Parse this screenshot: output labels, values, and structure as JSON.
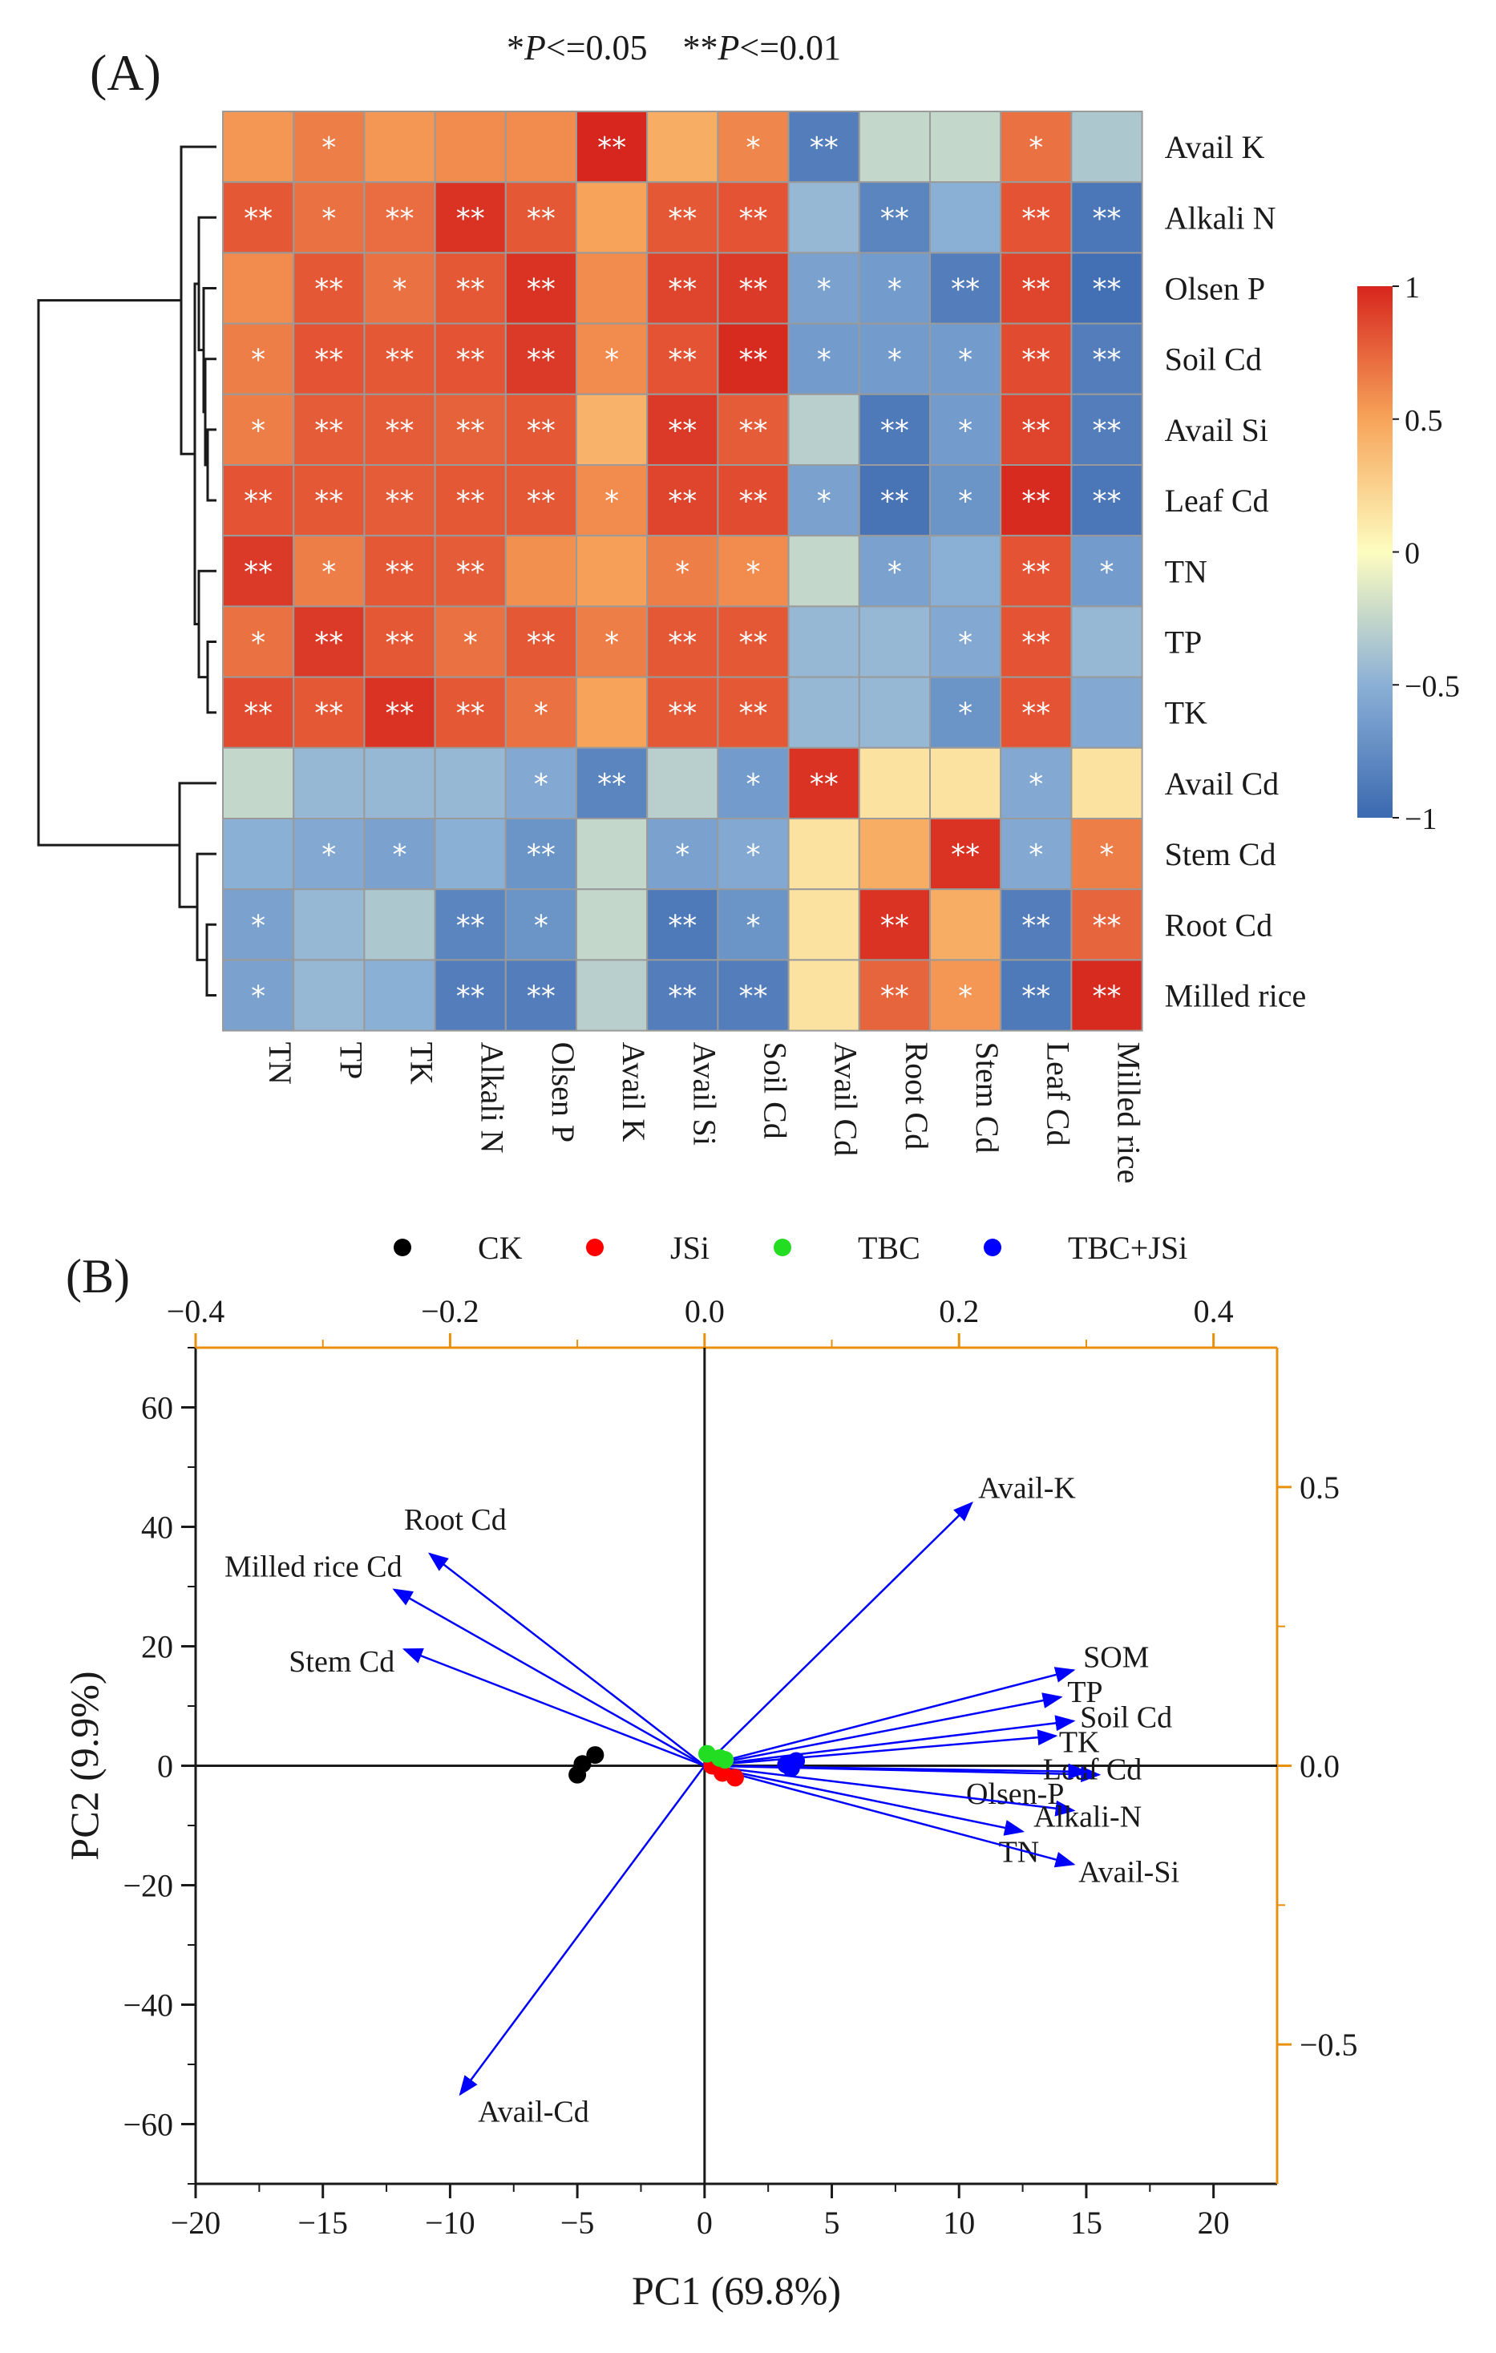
{
  "figure": {
    "panel_a_label": "(A)",
    "panel_b_label": "(B)",
    "sig_legend": {
      "p05_stars": "*",
      "p05_var": "P",
      "p05_rest": "<=0.05",
      "p01_stars": "**",
      "p01_var": "P",
      "p01_rest": "<=0.01"
    }
  },
  "chart_data": [
    {
      "type": "heatmap",
      "title": "",
      "rows": [
        "Avail K",
        "Alkali N",
        "Olsen P",
        "Soil Cd",
        "Avail Si",
        "Leaf Cd",
        "TN",
        "TP",
        "TK",
        "Avail Cd",
        "Stem Cd",
        "Root Cd",
        "Milled rice"
      ],
      "columns": [
        "TN",
        "TP",
        "TK",
        "Alkali N",
        "Olsen P",
        "Avail K",
        "Avail Si",
        "Soil Cd",
        "Avail Cd",
        "Root Cd",
        "Stem Cd",
        "Leaf Cd",
        "Milled rice"
      ],
      "values": [
        [
          0.55,
          0.65,
          0.55,
          0.6,
          0.6,
          1.0,
          0.45,
          0.62,
          -0.85,
          -0.25,
          -0.25,
          0.7,
          -0.35
        ],
        [
          0.8,
          0.7,
          0.72,
          0.95,
          0.8,
          0.5,
          0.8,
          0.82,
          -0.45,
          -0.8,
          -0.5,
          0.82,
          -0.9
        ],
        [
          0.6,
          0.8,
          0.7,
          0.8,
          0.95,
          0.6,
          0.88,
          0.92,
          -0.6,
          -0.65,
          -0.85,
          0.88,
          -0.95
        ],
        [
          0.65,
          0.82,
          0.8,
          0.82,
          0.92,
          0.6,
          0.82,
          0.98,
          -0.65,
          -0.65,
          -0.65,
          0.85,
          -0.85
        ],
        [
          0.65,
          0.78,
          0.78,
          0.76,
          0.8,
          0.42,
          0.92,
          0.78,
          -0.3,
          -0.88,
          -0.65,
          0.88,
          -0.85
        ],
        [
          0.82,
          0.8,
          0.78,
          0.8,
          0.8,
          0.6,
          0.88,
          0.85,
          -0.6,
          -0.92,
          -0.7,
          0.98,
          -0.9
        ],
        [
          0.92,
          0.65,
          0.8,
          0.78,
          0.58,
          0.52,
          0.65,
          0.6,
          -0.25,
          -0.6,
          -0.5,
          0.82,
          -0.65
        ],
        [
          0.7,
          0.92,
          0.8,
          0.7,
          0.8,
          0.65,
          0.8,
          0.8,
          -0.45,
          -0.45,
          -0.55,
          0.82,
          -0.45
        ],
        [
          0.85,
          0.8,
          0.95,
          0.8,
          0.7,
          0.5,
          0.8,
          0.8,
          -0.45,
          -0.45,
          -0.7,
          0.82,
          -0.55
        ],
        [
          -0.25,
          -0.45,
          -0.45,
          -0.45,
          -0.55,
          -0.8,
          -0.3,
          -0.65,
          0.95,
          0.15,
          0.15,
          -0.55,
          0.15
        ],
        [
          -0.5,
          -0.55,
          -0.6,
          -0.5,
          -0.7,
          -0.25,
          -0.6,
          -0.55,
          0.15,
          0.45,
          0.95,
          -0.55,
          0.65
        ],
        [
          -0.6,
          -0.45,
          -0.35,
          -0.8,
          -0.7,
          -0.25,
          -0.88,
          -0.7,
          0.15,
          0.95,
          0.45,
          -0.85,
          0.75
        ],
        [
          -0.6,
          -0.45,
          -0.5,
          -0.85,
          -0.85,
          -0.3,
          -0.85,
          -0.85,
          0.15,
          0.75,
          0.55,
          -0.88,
          0.98
        ]
      ],
      "significance": [
        [
          "",
          "*",
          "",
          "",
          "",
          "**",
          "",
          "*",
          "**",
          "",
          "",
          "*",
          ""
        ],
        [
          "**",
          "*",
          "**",
          "**",
          "**",
          "",
          "**",
          "**",
          "",
          "**",
          "",
          "**",
          "**"
        ],
        [
          "",
          "**",
          "*",
          "**",
          "**",
          "",
          "**",
          "**",
          "*",
          "*",
          "**",
          "**",
          "**"
        ],
        [
          "*",
          "**",
          "**",
          "**",
          "**",
          "*",
          "**",
          "**",
          "*",
          "*",
          "*",
          "**",
          "**"
        ],
        [
          "*",
          "**",
          "**",
          "**",
          "**",
          "",
          "**",
          "**",
          "",
          "**",
          "*",
          "**",
          "**"
        ],
        [
          "**",
          "**",
          "**",
          "**",
          "**",
          "*",
          "**",
          "**",
          "*",
          "**",
          "*",
          "**",
          "**"
        ],
        [
          "**",
          "*",
          "**",
          "**",
          "",
          "",
          "*",
          "*",
          "",
          "*",
          "",
          "**",
          "*"
        ],
        [
          "*",
          "**",
          "**",
          "*",
          "**",
          "*",
          "**",
          "**",
          "",
          "",
          "*",
          "**",
          ""
        ],
        [
          "**",
          "**",
          "**",
          "**",
          "*",
          "",
          "**",
          "**",
          "",
          "",
          "*",
          "**",
          ""
        ],
        [
          "",
          "",
          "",
          "",
          "*",
          "**",
          "",
          "*",
          "**",
          "",
          "",
          "*",
          ""
        ],
        [
          "",
          "*",
          "*",
          "",
          "**",
          "",
          "*",
          "*",
          "",
          "",
          "**",
          "*",
          "*"
        ],
        [
          "*",
          "",
          "",
          "**",
          "*",
          "",
          "**",
          "*",
          "",
          "**",
          "",
          "**",
          "**"
        ],
        [
          "*",
          "",
          "",
          "**",
          "**",
          "",
          "**",
          "**",
          "",
          "**",
          "*",
          "**",
          "**"
        ]
      ],
      "colorbar": {
        "min": -1,
        "max": 1,
        "ticks": [
          1,
          0.5,
          0,
          -0.5,
          -1
        ],
        "tick_labels": [
          "1",
          "0.5",
          "0",
          "−0.5",
          "−1"
        ]
      },
      "colors": {
        "high": "#d7261e",
        "mid": "#fdfdc0",
        "low": "#3b69b0"
      },
      "dendrogram_groups": [
        [
          "Avail K",
          "Alkali N",
          "Olsen P",
          "Soil Cd",
          "Avail Si",
          "Leaf Cd",
          "TN",
          "TP",
          "TK"
        ],
        [
          "Avail Cd",
          "Stem Cd",
          "Root Cd",
          "Milled rice"
        ]
      ]
    },
    {
      "type": "scatter",
      "subtype": "biplot",
      "xlabel": "PC1 (69.8%)",
      "ylabel": "PC2 (9.9%)",
      "xlim": [
        -20,
        22.5
      ],
      "ylim": [
        -70,
        70
      ],
      "x_ticks": [
        -20,
        -15,
        -10,
        -5,
        0,
        5,
        10,
        15,
        20
      ],
      "x_tick_labels": [
        "−20",
        "−15",
        "−10",
        "−5",
        "0",
        "5",
        "10",
        "15",
        "20"
      ],
      "y_ticks": [
        60,
        40,
        20,
        0,
        -20,
        -40,
        -60
      ],
      "y_tick_labels": [
        "60",
        "40",
        "20",
        "0",
        "−20",
        "−40",
        "−60"
      ],
      "top_axis": {
        "range": [
          -0.4,
          0.45
        ],
        "ticks": [
          -0.4,
          -0.2,
          0.0,
          0.2,
          0.4
        ],
        "tick_labels": [
          "−0.4",
          "−0.2",
          "0.0",
          "0.2",
          "0.4"
        ]
      },
      "right_axis": {
        "range": [
          -0.75,
          0.75
        ],
        "ticks": [
          0.5,
          0.0,
          -0.5
        ],
        "tick_labels": [
          "0.5",
          "0.0",
          "−0.5"
        ]
      },
      "legend": [
        {
          "label": "CK",
          "color": "#000000"
        },
        {
          "label": "JSi",
          "color": "#ff0000"
        },
        {
          "label": "TBC",
          "color": "#22dd22"
        },
        {
          "label": "TBC+JSi",
          "color": "#0000ff"
        }
      ],
      "points": [
        {
          "group": "CK",
          "x": -5.0,
          "y": -1.5
        },
        {
          "group": "CK",
          "x": -4.8,
          "y": 0.3
        },
        {
          "group": "CK",
          "x": -4.3,
          "y": 1.8
        },
        {
          "group": "JSi",
          "x": 0.7,
          "y": -1.2
        },
        {
          "group": "JSi",
          "x": 1.2,
          "y": -2.0
        },
        {
          "group": "JSi",
          "x": 0.3,
          "y": 0.0
        },
        {
          "group": "TBC",
          "x": 0.1,
          "y": 2.0
        },
        {
          "group": "TBC",
          "x": 0.6,
          "y": 1.3
        },
        {
          "group": "TBC",
          "x": 0.8,
          "y": 1.0
        },
        {
          "group": "TBC+JSi",
          "x": 3.2,
          "y": 0.2
        },
        {
          "group": "TBC+JSi",
          "x": 3.6,
          "y": 0.8
        },
        {
          "group": "TBC+JSi",
          "x": 3.4,
          "y": -0.4
        }
      ],
      "loadings": [
        {
          "label": "Avail-K",
          "x": 10.5,
          "y": 44.0
        },
        {
          "label": "SOM",
          "x": 14.5,
          "y": 16.0
        },
        {
          "label": "TP",
          "x": 14.0,
          "y": 11.5
        },
        {
          "label": "Soil Cd",
          "x": 14.5,
          "y": 7.5
        },
        {
          "label": "TK",
          "x": 13.8,
          "y": 5.0
        },
        {
          "label": "Leaf Cd",
          "x": 15.5,
          "y": -1.5
        },
        {
          "label": "Olsen-P",
          "x": 15.0,
          "y": -1.0
        },
        {
          "label": "Alkali-N",
          "x": 14.5,
          "y": -7.5
        },
        {
          "label": "TN",
          "x": 12.5,
          "y": -11.0
        },
        {
          "label": "Avail-Si",
          "x": 14.5,
          "y": -16.5
        },
        {
          "label": "Root Cd",
          "x": -10.8,
          "y": 35.5
        },
        {
          "label": "Milled rice Cd",
          "x": -12.2,
          "y": 29.5
        },
        {
          "label": "Stem Cd",
          "x": -11.8,
          "y": 19.5
        },
        {
          "label": "Avail-Cd",
          "x": -9.6,
          "y": -55.0
        }
      ],
      "arrow_color": "#0000ff",
      "secondary_axis_color": "#e8900c"
    }
  ]
}
